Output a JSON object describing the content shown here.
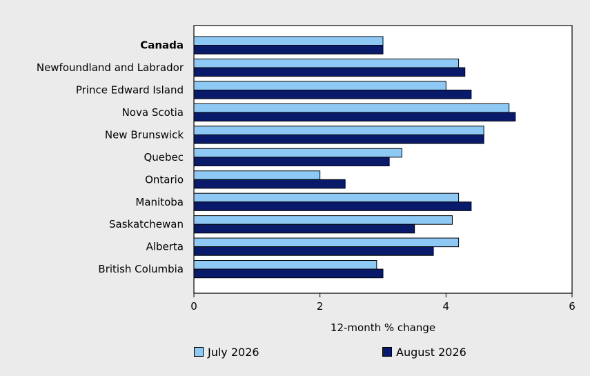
{
  "chart_data": {
    "type": "bar",
    "orientation": "horizontal",
    "categories": [
      "Canada",
      "Newfoundland and Labrador",
      "Prince Edward Island",
      "Nova Scotia",
      "New Brunswick",
      "Quebec",
      "Ontario",
      "Manitoba",
      "Saskatchewan",
      "Alberta",
      "British Columbia"
    ],
    "bold_categories": [
      "Canada"
    ],
    "series": [
      {
        "name": "July 2026",
        "color": "#8ec9f5",
        "values": [
          3.0,
          4.2,
          4.0,
          5.0,
          4.6,
          3.3,
          2.0,
          4.2,
          4.1,
          4.2,
          2.9
        ]
      },
      {
        "name": "August 2026",
        "color": "#0a1a6b",
        "values": [
          3.0,
          4.3,
          4.4,
          5.1,
          4.6,
          3.1,
          2.4,
          4.4,
          3.5,
          3.8,
          3.0
        ]
      }
    ],
    "xlabel": "12-month % change",
    "xlim": [
      0,
      6
    ],
    "xticks": [
      "0",
      "2",
      "4",
      "6"
    ],
    "grid": false,
    "legend_position": "bottom"
  }
}
